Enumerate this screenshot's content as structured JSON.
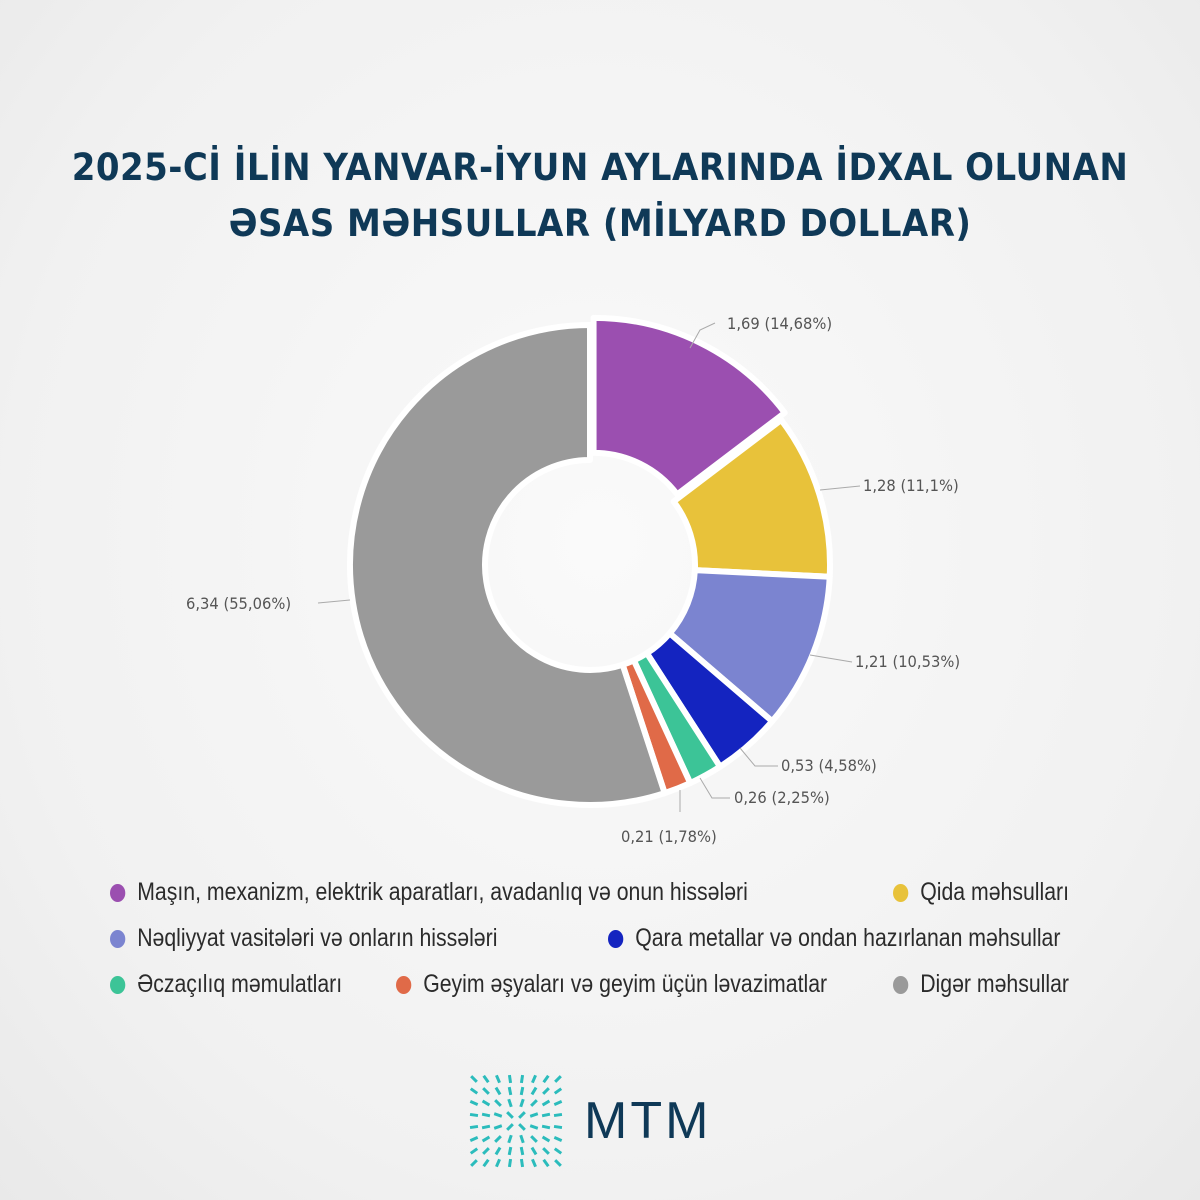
{
  "chart_data": {
    "type": "pie",
    "variant": "donut",
    "title": "2025-Cİ İLİN YANVAR-İYUN AYLARINDA İDXAL OLUNAN ƏSAS MƏHSULLAR (MİLYARD DOLLAR)",
    "title_lines": [
      "2025-Cİ İLİN YANVAR-İYUN AYLARINDA İDXAL OLUNAN",
      "ƏSAS MƏHSULLAR (MİLYARD DOLLAR)"
    ],
    "legend_placement": "bottom",
    "slices": [
      {
        "name": "Maşın, mexanizm, elektrik aparatları, avadanlıq və onun hissələri",
        "value": 1.69,
        "percent": 14.68,
        "label": "1,69 (14,68%)",
        "color": "#9b4fb0"
      },
      {
        "name": "Qida məhsulları",
        "value": 1.28,
        "percent": 11.1,
        "label": "1,28 (11,1%)",
        "color": "#e8c23a"
      },
      {
        "name": "Nəqliyyat vasitələri və onların hissələri",
        "value": 1.21,
        "percent": 10.53,
        "label": "1,21 (10,53%)",
        "color": "#7b84d0"
      },
      {
        "name": "Qara metallar və ondan hazırlanan məhsullar",
        "value": 0.53,
        "percent": 4.58,
        "label": "0,53 (4,58%)",
        "color": "#1424c0"
      },
      {
        "name": "Əczaçılıq məmulatları",
        "value": 0.26,
        "percent": 2.25,
        "label": "0,26 (2,25%)",
        "color": "#3cc497"
      },
      {
        "name": "Geyim əşyaları və geyim üçün ləvazimatlar",
        "value": 0.21,
        "percent": 1.78,
        "label": "0,21 (1,78%)",
        "color": "#e06a48"
      },
      {
        "name": "Digər məhsullar",
        "value": 6.34,
        "percent": 55.06,
        "label": "6,34 (55,06%)",
        "color": "#9a9a9a"
      }
    ]
  },
  "logo": {
    "text": "MTM",
    "color": "#0f3957",
    "accent": "#2bbcbc"
  }
}
